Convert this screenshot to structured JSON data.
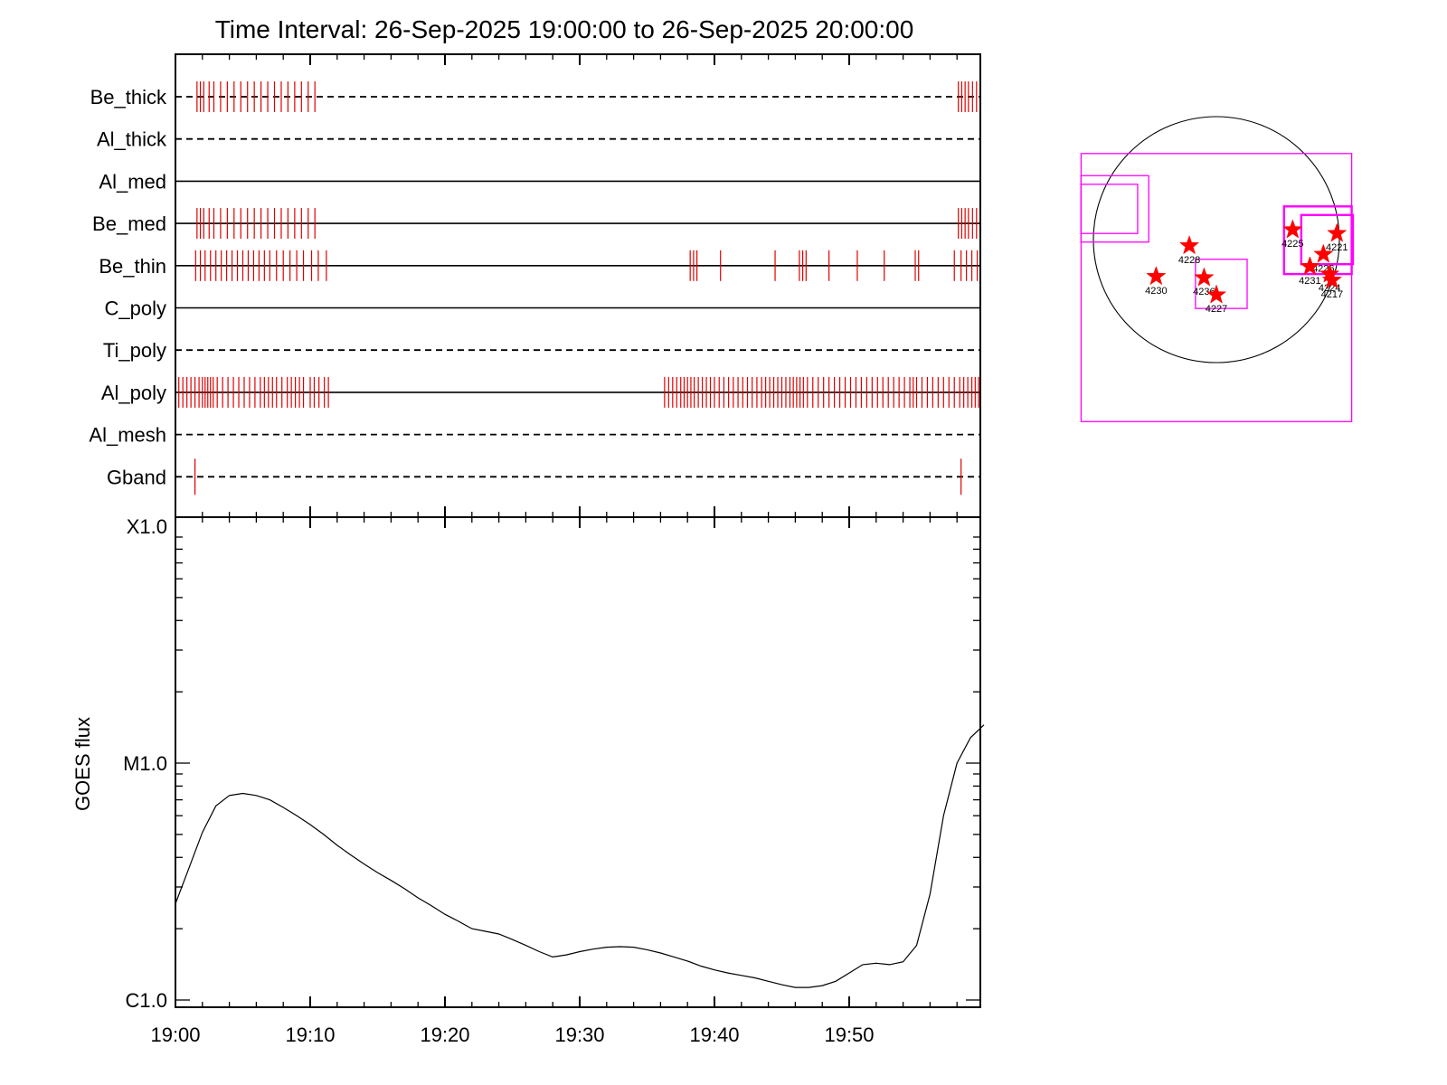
{
  "chart_data": [
    {
      "type": "timeline",
      "title": "Time Interval: 26-Sep-2025 19:00:00 to 26-Sep-2025 20:00:00",
      "x_range_minutes": [
        0,
        60
      ],
      "channels": [
        {
          "label": "Be_thick",
          "line": "dashed",
          "marks": [
            1.6,
            1.85,
            2.1,
            2.5,
            2.85,
            3.35,
            3.85,
            4.35,
            4.85,
            5.35,
            5.85,
            6.35,
            6.85,
            7.35,
            7.85,
            8.35,
            8.85,
            9.35,
            9.85,
            10.35,
            58.1,
            58.35,
            58.6,
            58.85,
            59.15,
            59.45
          ]
        },
        {
          "label": "Al_thick",
          "line": "dashed",
          "marks": []
        },
        {
          "label": "Al_med",
          "line": "solid",
          "marks": []
        },
        {
          "label": "Be_med",
          "line": "solid",
          "marks": [
            1.6,
            1.85,
            2.1,
            2.5,
            2.85,
            3.35,
            3.85,
            4.35,
            4.85,
            5.35,
            5.85,
            6.35,
            6.85,
            7.35,
            7.85,
            8.35,
            8.85,
            9.35,
            9.85,
            10.35,
            58.1,
            58.35,
            58.6,
            58.85,
            59.15,
            59.45
          ]
        },
        {
          "label": "Be_thin",
          "line": "solid",
          "marks": [
            1.5,
            1.85,
            2.2,
            2.6,
            3.0,
            3.4,
            3.8,
            4.2,
            4.6,
            5.0,
            5.4,
            5.8,
            6.2,
            6.6,
            7.0,
            7.5,
            8.0,
            8.5,
            9.0,
            9.5,
            10.1,
            10.6,
            11.2,
            38.2,
            38.45,
            38.7,
            40.45,
            44.5,
            46.3,
            46.55,
            46.8,
            48.5,
            50.6,
            52.6,
            54.9,
            55.15,
            57.8,
            58.3,
            58.7,
            59.1,
            59.5
          ]
        },
        {
          "label": "C_poly",
          "line": "solid",
          "marks": []
        },
        {
          "label": "Ti_poly",
          "line": "dashed",
          "marks": []
        },
        {
          "label": "Al_poly",
          "line": "solid",
          "marks": [
            0.25,
            0.55,
            0.85,
            1.15,
            1.45,
            1.75,
            2.0,
            2.2,
            2.4,
            2.6,
            2.8,
            3.1,
            3.5,
            3.9,
            4.3,
            4.7,
            5.1,
            5.5,
            5.9,
            6.3,
            6.6,
            6.9,
            7.2,
            7.5,
            7.9,
            8.3,
            8.6,
            8.9,
            9.2,
            9.5,
            10.0,
            10.3,
            10.65,
            11.05,
            11.35,
            36.3,
            36.6,
            36.9,
            37.2,
            37.5,
            37.75,
            38.0,
            38.25,
            38.5,
            38.8,
            39.1,
            39.4,
            39.7,
            40.0,
            40.35,
            40.7,
            41.05,
            41.4,
            41.75,
            42.1,
            42.45,
            42.8,
            43.15,
            43.5,
            43.8,
            44.1,
            44.4,
            44.7,
            45.0,
            45.3,
            45.6,
            45.85,
            46.1,
            46.35,
            46.6,
            46.9,
            47.3,
            47.7,
            48.1,
            48.5,
            48.9,
            49.3,
            49.7,
            50.1,
            50.5,
            50.9,
            51.3,
            51.7,
            52.1,
            52.5,
            52.9,
            53.3,
            53.7,
            54.1,
            54.5,
            54.75,
            55.0,
            55.4,
            55.8,
            56.2,
            56.6,
            57.0,
            57.4,
            57.8,
            58.2,
            58.5,
            58.8,
            59.1,
            59.35,
            59.6
          ]
        },
        {
          "label": "Al_mesh",
          "line": "dashed",
          "marks": []
        },
        {
          "label": "Gband",
          "line": "dashed",
          "marks": [
            1.45,
            58.3
          ]
        }
      ]
    },
    {
      "type": "line",
      "xlabel": "",
      "ylabel": "GOES flux",
      "y_scale": "log",
      "ylim": [
        1e-06,
        0.0001
      ],
      "y_tick_labels": [
        {
          "value": 0.0001,
          "label": "X1.0"
        },
        {
          "value": 1e-05,
          "label": "M1.0"
        },
        {
          "value": 1e-06,
          "label": "C1.0"
        }
      ],
      "x_range_minutes": [
        0,
        60
      ],
      "x_ticks": [
        {
          "minute": 0,
          "label": "19:00"
        },
        {
          "minute": 10,
          "label": "19:10"
        },
        {
          "minute": 20,
          "label": "19:20"
        },
        {
          "minute": 30,
          "label": "19:30"
        },
        {
          "minute": 40,
          "label": "19:40"
        },
        {
          "minute": 50,
          "label": "19:50"
        }
      ],
      "series": [
        {
          "x": [
            0,
            1,
            2,
            3,
            4,
            5,
            6,
            7,
            8,
            9,
            10,
            11,
            12,
            13,
            14,
            15,
            16,
            17,
            18,
            19,
            20,
            21,
            22,
            23,
            24,
            25,
            26,
            27,
            28,
            29,
            30,
            31,
            32,
            33,
            34,
            35,
            36,
            37,
            38,
            39,
            40,
            41,
            42,
            43,
            44,
            45,
            46,
            47,
            48,
            49,
            50,
            51,
            52,
            53,
            54,
            55,
            56,
            57,
            58,
            59,
            60
          ],
          "y": [
            2.55e-06,
            3.6e-06,
            5.1e-06,
            6.6e-06,
            7.3e-06,
            7.45e-06,
            7.3e-06,
            7e-06,
            6.5e-06,
            6e-06,
            5.5e-06,
            5e-06,
            4.5e-06,
            4.1e-06,
            3.75e-06,
            3.45e-06,
            3.2e-06,
            2.95e-06,
            2.7e-06,
            2.5e-06,
            2.3e-06,
            2.15e-06,
            2e-06,
            1.95e-06,
            1.9e-06,
            1.8e-06,
            1.7e-06,
            1.6e-06,
            1.52e-06,
            1.55e-06,
            1.6e-06,
            1.64e-06,
            1.67e-06,
            1.68e-06,
            1.67e-06,
            1.63e-06,
            1.58e-06,
            1.52e-06,
            1.46e-06,
            1.39e-06,
            1.34e-06,
            1.3e-06,
            1.27e-06,
            1.24e-06,
            1.2e-06,
            1.16e-06,
            1.13e-06,
            1.13e-06,
            1.15e-06,
            1.2e-06,
            1.3e-06,
            1.41e-06,
            1.43e-06,
            1.41e-06,
            1.45e-06,
            1.7e-06,
            2.8e-06,
            6e-06,
            1e-05,
            1.28e-05,
            1.45e-05
          ]
        }
      ]
    },
    {
      "type": "scatter",
      "disk": {
        "cx": 0,
        "cy": 0,
        "r": 1.0
      },
      "regions": [
        {
          "label": "4225",
          "x": 0.62,
          "y": 0.08
        },
        {
          "label": "4221",
          "x": 0.98,
          "y": 0.05
        },
        {
          "label": "4228",
          "x": -0.22,
          "y": -0.05
        },
        {
          "label": "4226",
          "x": 0.87,
          "y": -0.12
        },
        {
          "label": "4231",
          "x": 0.76,
          "y": -0.22
        },
        {
          "label": "4224",
          "x": 0.92,
          "y": -0.28
        },
        {
          "label": "4217",
          "x": 0.94,
          "y": -0.33
        },
        {
          "label": "4230",
          "x": -0.49,
          "y": -0.3
        },
        {
          "label": "4236",
          "x": -0.1,
          "y": -0.31
        },
        {
          "label": "4227",
          "x": 0.0,
          "y": -0.45
        }
      ],
      "boxes": [
        {
          "x0": -1.1,
          "y0": -1.48,
          "x1": 1.1,
          "y1": 0.7,
          "weight": 1
        },
        {
          "x0": -1.1,
          "y0": -0.02,
          "x1": -0.55,
          "y1": 0.52,
          "weight": 1
        },
        {
          "x0": -1.1,
          "y0": 0.05,
          "x1": -0.64,
          "y1": 0.45,
          "weight": 1
        },
        {
          "x0": -0.17,
          "y0": -0.56,
          "x1": 0.25,
          "y1": -0.16,
          "weight": 1
        },
        {
          "x0": 0.55,
          "y0": -0.28,
          "x1": 1.1,
          "y1": 0.27,
          "weight": 2
        },
        {
          "x0": 0.69,
          "y0": -0.2,
          "x1": 1.11,
          "y1": 0.2,
          "weight": 2
        }
      ]
    }
  ]
}
